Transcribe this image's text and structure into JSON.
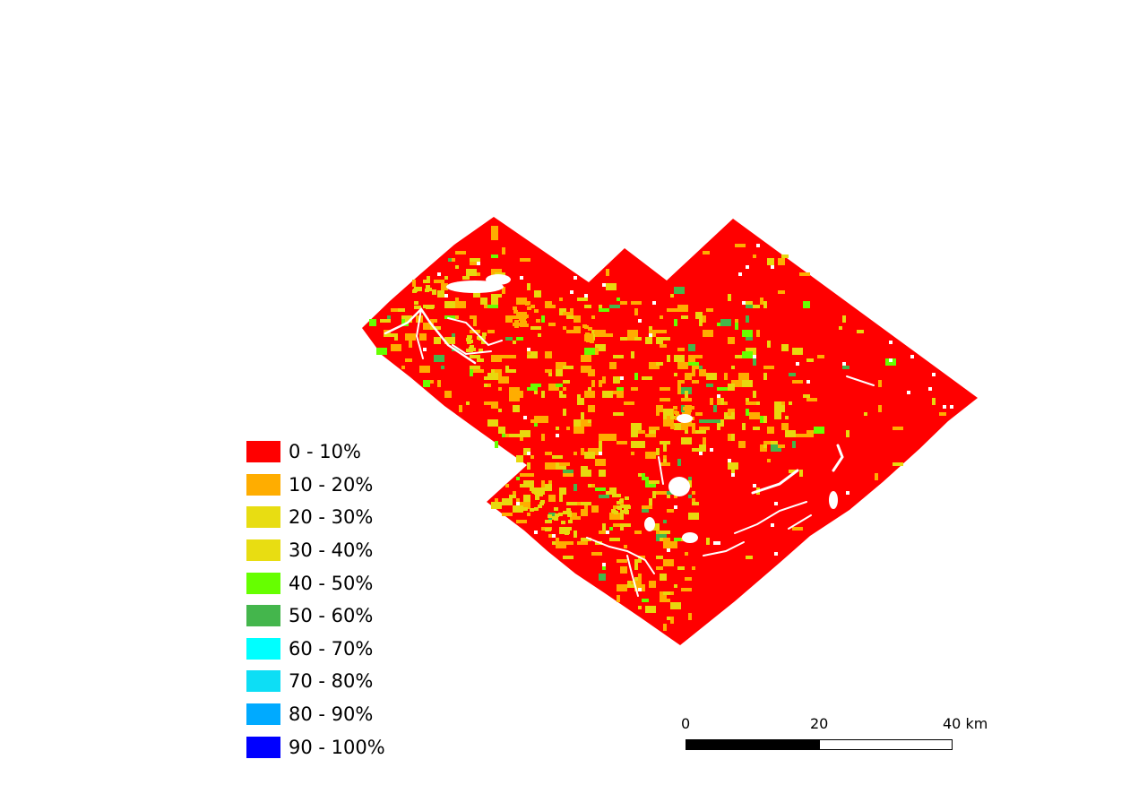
{
  "map": {
    "fill_color": "#ff0000",
    "patch_colors": {
      "orange": "#ffad00",
      "yellow": "#e8d80e",
      "green": "#66ff00",
      "darkgreen": "#44b64c",
      "blue": "#0000ff",
      "nodata": "#ffffff"
    }
  },
  "legend": {
    "items": [
      {
        "label": "0 - 10%",
        "color": "#ff0000"
      },
      {
        "label": "10 - 20%",
        "color": "#ffad00"
      },
      {
        "label": "20 - 30%",
        "color": "#e8dd12"
      },
      {
        "label": "30 - 40%",
        "color": "#e8dd12"
      },
      {
        "label": "40 - 50%",
        "color": "#66ff00"
      },
      {
        "label": "50 - 60%",
        "color": "#44b64c"
      },
      {
        "label": "60 - 70%",
        "color": "#00ffff"
      },
      {
        "label": "70 - 80%",
        "color": "#0ddef5"
      },
      {
        "label": "80 - 90%",
        "color": "#00aaff"
      },
      {
        "label": "90 - 100%",
        "color": "#0000ff"
      }
    ]
  },
  "scalebar": {
    "ticks": [
      "0",
      "20",
      "40 km"
    ]
  }
}
